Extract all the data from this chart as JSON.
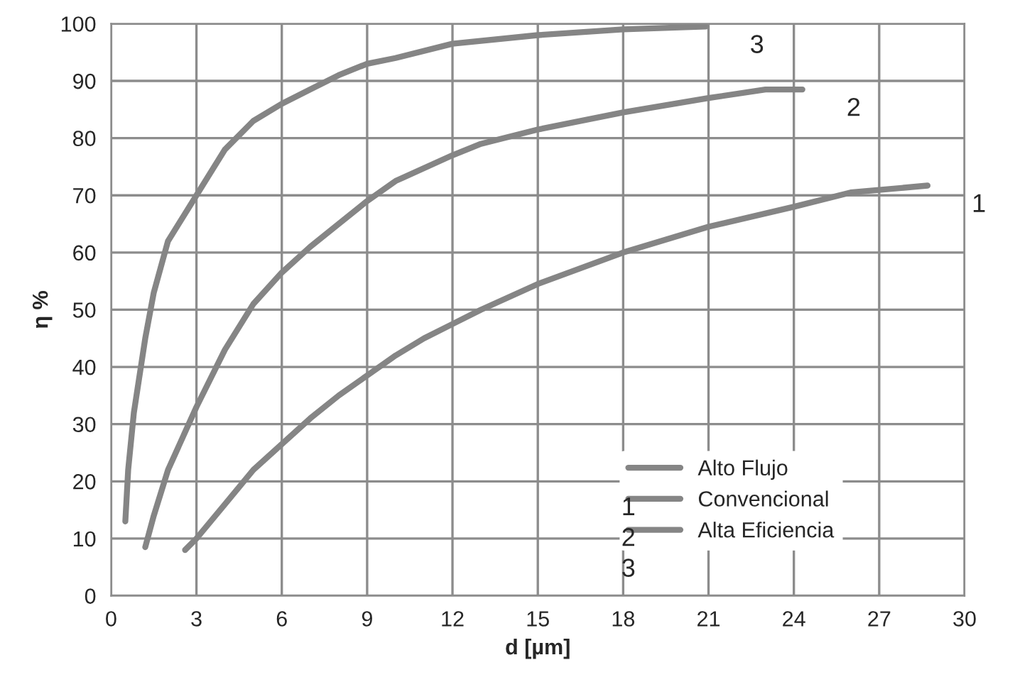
{
  "chart_data": {
    "type": "line",
    "xlabel": "d [µm]",
    "ylabel": "η %",
    "xlim": [
      0,
      30
    ],
    "xticks": [
      0,
      3,
      6,
      9,
      12,
      15,
      18,
      21,
      24,
      27,
      30
    ],
    "ylim": [
      0,
      100
    ],
    "yticks": [
      0,
      10,
      20,
      30,
      40,
      50,
      60,
      70,
      80,
      90,
      100
    ],
    "grid": true,
    "legend": "bottom right",
    "marker": "none",
    "line_style": "solid",
    "series": [
      {
        "name": "Alto Flujo",
        "color": "#858585",
        "x": [
          2.6,
          3,
          4,
          5,
          6,
          7,
          8,
          9,
          10,
          11,
          12,
          13,
          15,
          18,
          21,
          24,
          26,
          28.7
        ],
        "values": [
          8,
          10,
          16,
          22,
          26.5,
          31,
          35,
          38.5,
          42,
          45,
          47.5,
          50,
          54.5,
          60,
          64.5,
          68,
          70.5,
          71.7
        ]
      },
      {
        "name": "Convencional",
        "color": "#858585",
        "x": [
          1.2,
          1.5,
          2,
          3,
          4,
          5,
          6,
          7,
          8,
          9,
          10,
          12,
          13,
          15,
          18,
          21,
          23,
          24.3
        ],
        "values": [
          8.5,
          14,
          22,
          33,
          43,
          51,
          56.5,
          61,
          65,
          69,
          72.5,
          77,
          79,
          81.5,
          84.5,
          87,
          88.5,
          88.5
        ]
      },
      {
        "name": "Alta Eficiencia",
        "color": "#858585",
        "x": [
          0.5,
          0.6,
          0.8,
          1.2,
          1.5,
          2,
          3,
          4,
          5,
          6,
          7,
          8,
          9,
          10,
          12,
          15,
          18,
          20.9
        ],
        "values": [
          13,
          22,
          32,
          45,
          53,
          62,
          70,
          78,
          83,
          86,
          88.5,
          91,
          93,
          94,
          96.5,
          98,
          99,
          99.5
        ]
      }
    ],
    "annotations": [
      "1",
      "2",
      "3",
      "1",
      "2",
      "3"
    ]
  }
}
